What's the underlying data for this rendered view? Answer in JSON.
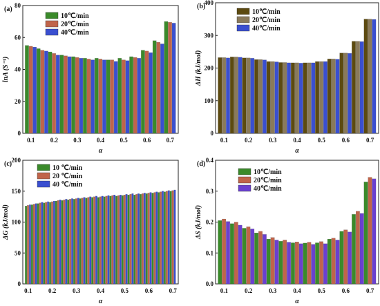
{
  "colors": {
    "panel_a": [
      "#3a8a2a",
      "#c0644a",
      "#3a4fd0"
    ],
    "panel_b": [
      "#5c4a10",
      "#8a7a5a",
      "#3a4fd0"
    ],
    "panel_c": [
      "#3a8a2a",
      "#c0644a",
      "#3a4fd0"
    ],
    "panel_d": [
      "#3a8a2a",
      "#c0644a",
      "#6a40d0"
    ]
  },
  "chart_data": [
    {
      "type": "bar",
      "panel_label": "(a)",
      "categories": [
        "0.1",
        "0.15",
        "0.2",
        "0.25",
        "0.3",
        "0.35",
        "0.4",
        "0.45",
        "0.5",
        "0.55",
        "0.6",
        "0.65",
        "0.7"
      ],
      "x_tick_labels": [
        "0.1",
        "0.2",
        "0.3",
        "0.4",
        "0.5",
        "0.6",
        "0.7"
      ],
      "xlabel": "α",
      "ylabel": "lnA (S⁻¹)",
      "ylim": [
        0,
        80
      ],
      "y_ticks": [
        "0",
        "20",
        "40",
        "60",
        "80"
      ],
      "legend": [
        "10℃/min",
        "20℃/min",
        "40℃/min"
      ],
      "legend_position": "top-left",
      "series": [
        {
          "name": "10℃/min",
          "values": [
            55,
            53,
            51,
            49,
            48,
            47,
            47,
            46,
            47,
            48,
            52,
            58,
            70
          ]
        },
        {
          "name": "20℃/min",
          "values": [
            54.5,
            52,
            50,
            48.5,
            47.5,
            46.5,
            46.5,
            46,
            46,
            47.5,
            51.5,
            57,
            69.5
          ]
        },
        {
          "name": "40℃/min",
          "values": [
            54,
            51.5,
            49,
            48,
            47,
            46,
            46,
            45,
            45.5,
            47,
            50.5,
            56,
            69
          ]
        }
      ]
    },
    {
      "type": "bar",
      "panel_label": "(b)",
      "categories": [
        "0.1",
        "0.15",
        "0.2",
        "0.25",
        "0.3",
        "0.35",
        "0.4",
        "0.45",
        "0.5",
        "0.55",
        "0.6",
        "0.65",
        "0.7"
      ],
      "x_tick_labels": [
        "0.1",
        "0.2",
        "0.3",
        "0.4",
        "0.5",
        "0.6",
        "0.7"
      ],
      "xlabel": "α",
      "ylabel": "ΔH (kJ/mol)",
      "ylim": [
        0,
        400
      ],
      "y_ticks": [
        "0",
        "100",
        "200",
        "300",
        "400"
      ],
      "legend": [
        "10℃/min",
        "20℃/min",
        "40℃/min"
      ],
      "legend_position": "top-left",
      "series": [
        {
          "name": "10℃/min",
          "values": [
            232,
            234,
            231,
            226,
            220,
            217,
            216,
            216,
            220,
            228,
            246,
            282,
            350
          ]
        },
        {
          "name": "20℃/min",
          "values": [
            232,
            234,
            231,
            226,
            220,
            217,
            216,
            216,
            220,
            228,
            246,
            282,
            350
          ]
        },
        {
          "name": "40℃/min",
          "values": [
            231,
            233,
            230,
            225,
            219,
            216,
            215,
            216,
            220,
            227,
            245,
            281,
            349
          ]
        }
      ]
    },
    {
      "type": "bar",
      "panel_label": "(c)",
      "categories": [
        "0.1",
        "0.125",
        "0.15",
        "0.175",
        "0.2",
        "0.225",
        "0.25",
        "0.275",
        "0.3",
        "0.325",
        "0.35",
        "0.375",
        "0.4",
        "0.425",
        "0.45",
        "0.475",
        "0.5",
        "0.525",
        "0.55",
        "0.575",
        "0.6",
        "0.625",
        "0.65",
        "0.675",
        "0.7"
      ],
      "x_tick_labels": [
        "0.1",
        "0.2",
        "0.3",
        "0.4",
        "0.5",
        "0.6",
        "0.7"
      ],
      "xlabel": "α",
      "ylabel": "ΔG (kJ/mol)",
      "ylim": [
        0,
        200
      ],
      "y_ticks": [
        "0",
        "50",
        "100",
        "150",
        "200"
      ],
      "legend": [
        "10 ℃/min",
        "20 ℃/min",
        "40 ℃/min"
      ],
      "legend_position": "top-left",
      "series": [
        {
          "name": "10 ℃/min",
          "values": [
            126,
            128,
            130,
            131,
            132,
            134,
            135,
            136,
            137,
            138,
            139,
            140,
            140,
            141,
            142,
            142,
            143,
            144,
            144,
            145,
            146,
            147,
            148,
            149,
            150
          ]
        },
        {
          "name": "20 ℃/min",
          "values": [
            127,
            129,
            131,
            132,
            133,
            135,
            136,
            137,
            138,
            139,
            140,
            141,
            141,
            142,
            143,
            143,
            144,
            145,
            145,
            146,
            147,
            148,
            149,
            150,
            151
          ]
        },
        {
          "name": "40 ℃/min",
          "values": [
            128,
            130,
            132,
            133,
            134,
            136,
            137,
            138,
            139,
            140,
            141,
            142,
            142,
            143,
            144,
            144,
            145,
            146,
            146,
            147,
            148,
            149,
            150,
            151,
            152
          ]
        }
      ]
    },
    {
      "type": "bar",
      "panel_label": "(d)",
      "categories": [
        "0.1",
        "0.15",
        "0.2",
        "0.25",
        "0.3",
        "0.35",
        "0.4",
        "0.45",
        "0.5",
        "0.55",
        "0.6",
        "0.65",
        "0.7"
      ],
      "x_tick_labels": [
        "0.1",
        "0.2",
        "0.3",
        "0.4",
        "0.5",
        "0.6",
        "0.7"
      ],
      "xlabel": "α",
      "ylabel": "ΔS (kJ/mol)",
      "ylim": [
        0,
        0.4
      ],
      "y_ticks": [
        "0.0",
        "0.1",
        "0.2",
        "0.3",
        "0.4"
      ],
      "legend": [
        "10℃/min",
        "20℃/min",
        "40℃/min"
      ],
      "legend_position": "top-left",
      "series": [
        {
          "name": "10℃/min",
          "values": [
            0.205,
            0.195,
            0.18,
            0.165,
            0.145,
            0.138,
            0.133,
            0.132,
            0.133,
            0.145,
            0.17,
            0.225,
            0.33
          ]
        },
        {
          "name": "20℃/min",
          "values": [
            0.21,
            0.2,
            0.185,
            0.17,
            0.15,
            0.142,
            0.136,
            0.135,
            0.137,
            0.148,
            0.175,
            0.235,
            0.345
          ]
        },
        {
          "name": "40℃/min",
          "values": [
            0.202,
            0.19,
            0.178,
            0.16,
            0.142,
            0.135,
            0.13,
            0.128,
            0.13,
            0.142,
            0.168,
            0.228,
            0.34
          ]
        }
      ]
    }
  ]
}
